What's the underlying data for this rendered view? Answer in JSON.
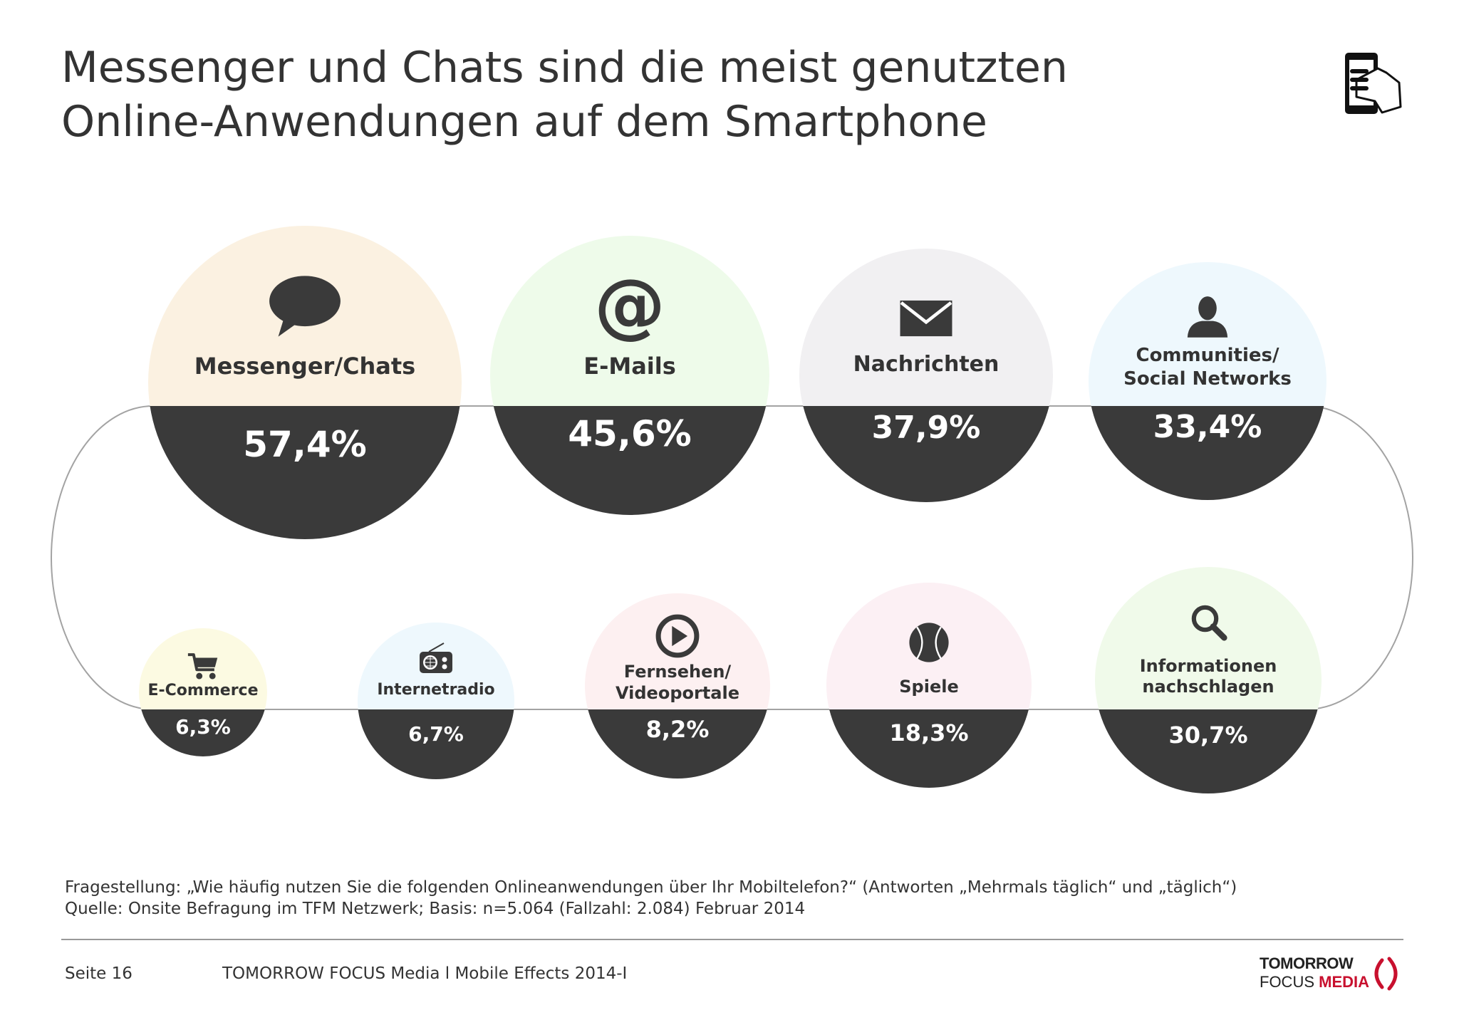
{
  "header": {
    "title_line1": "Messenger und Chats sind die meist genutzten",
    "title_line2": "Online-Anwendungen auf dem Smartphone",
    "icon": "hand-holding-smartphone-icon"
  },
  "chart_data": {
    "type": "bubble",
    "unit": "%",
    "series": [
      {
        "label": "Messenger/Chats",
        "value": 57.4,
        "value_label": "57,4%",
        "icon": "speech-bubble-icon",
        "color": "#fbf1e1"
      },
      {
        "label": "E-Mails",
        "value": 45.6,
        "value_label": "45,6%",
        "icon": "at-sign-icon",
        "color": "#eefbea"
      },
      {
        "label": "Nachrichten",
        "value": 37.9,
        "value_label": "37,9%",
        "icon": "envelope-icon",
        "color": "#f1f0f2"
      },
      {
        "label": "Communities/\nSocial Networks",
        "value": 33.4,
        "value_label": "33,4%",
        "icon": "person-icon",
        "color": "#eef8fd"
      },
      {
        "label": "Informationen\nnachschlagen",
        "value": 30.7,
        "value_label": "30,7%",
        "icon": "magnifier-icon",
        "color": "#f0faea"
      },
      {
        "label": "Spiele",
        "value": 18.3,
        "value_label": "18,3%",
        "icon": "ball-icon",
        "color": "#fcf0f4"
      },
      {
        "label": "Fernsehen/\nVideoportale",
        "value": 8.2,
        "value_label": "8,2%",
        "icon": "play-button-icon",
        "color": "#fdf0f1"
      },
      {
        "label": "Internetradio",
        "value": 6.7,
        "value_label": "6,7%",
        "icon": "radio-icon",
        "color": "#eef8fd"
      },
      {
        "label": "E-Commerce",
        "value": 6.3,
        "value_label": "6,3%",
        "icon": "shopping-cart-icon",
        "color": "#fcfae2"
      }
    ],
    "top_color": "#3a3a3a"
  },
  "footer": {
    "question": "Fragestellung: „Wie häufig nutzen Sie die folgenden Onlineanwendungen über Ihr Mobiltelefon?“ (Antworten „Mehrmals täglich“ und „täglich“)",
    "source": "Quelle: Onsite Befragung im TFM Netzwerk; Basis: n=5.064 (Fallzahl: 2.084) Februar 2014",
    "page": "Seite 16",
    "publisher": "TOMORROW FOCUS Media  l  Mobile Effects 2014-I",
    "logo_line1": "TOMORROW",
    "logo_focus": "FOCUS",
    "logo_media": "MEDIA",
    "accent_color": "#c8102e"
  }
}
